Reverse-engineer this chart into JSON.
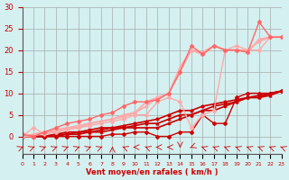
{
  "bg_color": "#d4f0f0",
  "grid_color": "#aaaaaa",
  "xlabel": "Vent moyen/en rafales ( km/h )",
  "xlabel_color": "#cc0000",
  "tick_color": "#cc0000",
  "xlim": [
    0,
    23
  ],
  "ylim": [
    0,
    30
  ],
  "yticks": [
    0,
    5,
    10,
    15,
    20,
    25,
    30
  ],
  "xticks": [
    0,
    1,
    2,
    3,
    4,
    5,
    6,
    7,
    8,
    9,
    10,
    11,
    12,
    13,
    14,
    15,
    16,
    17,
    18,
    19,
    20,
    21,
    22,
    23
  ],
  "series": [
    {
      "x": [
        0,
        1,
        2,
        3,
        4,
        5,
        6,
        7,
        8,
        9,
        10,
        11,
        12,
        13,
        14,
        15,
        16,
        17,
        18,
        19,
        20,
        21,
        22,
        23
      ],
      "y": [
        0,
        0,
        0,
        0,
        0,
        0,
        0,
        0,
        0.5,
        0.5,
        1,
        1,
        0,
        0,
        1,
        1,
        5,
        3,
        3,
        9,
        10,
        10,
        10,
        10.5
      ],
      "color": "#cc0000",
      "lw": 1.0,
      "marker": "D",
      "ms": 2
    },
    {
      "x": [
        0,
        1,
        2,
        3,
        4,
        5,
        6,
        7,
        8,
        9,
        10,
        11,
        12,
        13,
        14,
        15,
        16,
        17,
        18,
        19,
        20,
        21,
        22,
        23
      ],
      "y": [
        0,
        0,
        0,
        0,
        0.5,
        0.5,
        1,
        1,
        1.5,
        2,
        2,
        2,
        2,
        3,
        4,
        5,
        6,
        6,
        7,
        8,
        9,
        9,
        10,
        10.5
      ],
      "color": "#cc0000",
      "lw": 1.2,
      "marker": "s",
      "ms": 2
    },
    {
      "x": [
        0,
        1,
        2,
        3,
        4,
        5,
        6,
        7,
        8,
        9,
        10,
        11,
        12,
        13,
        14,
        15,
        16,
        17,
        18,
        19,
        20,
        21,
        22,
        23
      ],
      "y": [
        0,
        0,
        0,
        0.5,
        0.5,
        1,
        1,
        1.5,
        2,
        2,
        2.5,
        3,
        3,
        4,
        5,
        5,
        6,
        7,
        7.5,
        8,
        9,
        9,
        9.5,
        10.5
      ],
      "color": "#cc0000",
      "lw": 1.2,
      "marker": "^",
      "ms": 2
    },
    {
      "x": [
        0,
        1,
        2,
        3,
        4,
        5,
        6,
        7,
        8,
        9,
        10,
        11,
        12,
        13,
        14,
        15,
        16,
        17,
        18,
        19,
        20,
        21,
        22,
        23
      ],
      "y": [
        0,
        0,
        0,
        0.5,
        1,
        1,
        1.5,
        2,
        2,
        2.5,
        3,
        3.5,
        4,
        5,
        6,
        6,
        7,
        7.5,
        8,
        8.5,
        9,
        9.5,
        10,
        10.5
      ],
      "color": "#cc0000",
      "lw": 1.2,
      "marker": "o",
      "ms": 2
    },
    {
      "x": [
        0,
        1,
        2,
        3,
        4,
        5,
        6,
        7,
        8,
        9,
        10,
        11,
        12,
        13,
        14,
        15,
        16,
        17,
        18,
        19,
        20,
        21,
        22,
        23
      ],
      "y": [
        0,
        2,
        0.5,
        1,
        1.5,
        2,
        2.5,
        3,
        3.5,
        4,
        5,
        5,
        8,
        9,
        8,
        2,
        5,
        6,
        20,
        21,
        20,
        20,
        23,
        23
      ],
      "color": "#ffaaaa",
      "lw": 1.0,
      "marker": "D",
      "ms": 2
    },
    {
      "x": [
        0,
        1,
        2,
        3,
        4,
        5,
        6,
        7,
        8,
        9,
        10,
        11,
        12,
        13,
        14,
        15,
        16,
        17,
        18,
        19,
        20,
        21,
        22,
        23
      ],
      "y": [
        0,
        0.5,
        1,
        1.5,
        2,
        2.5,
        3,
        3.5,
        4,
        5,
        5.5,
        7,
        9,
        10,
        16,
        20,
        19.5,
        21,
        20,
        20,
        20,
        22,
        23,
        23
      ],
      "color": "#ffaaaa",
      "lw": 1.3,
      "marker": "^",
      "ms": 2
    },
    {
      "x": [
        0,
        1,
        2,
        3,
        4,
        5,
        6,
        7,
        8,
        9,
        10,
        11,
        12,
        13,
        14,
        15,
        16,
        17,
        18,
        19,
        20,
        21,
        22,
        23
      ],
      "y": [
        0,
        0,
        1,
        1,
        2,
        2,
        3,
        3.5,
        4,
        4.5,
        5.5,
        8,
        9,
        10,
        15,
        20,
        19,
        21,
        20,
        20,
        19.5,
        22.5,
        23,
        23
      ],
      "color": "#ffaaaa",
      "lw": 1.3,
      "marker": "o",
      "ms": 2
    },
    {
      "x": [
        0,
        1,
        2,
        3,
        4,
        5,
        6,
        7,
        8,
        9,
        10,
        11,
        12,
        13,
        14,
        15,
        16,
        17,
        18,
        19,
        20,
        21,
        22,
        23
      ],
      "y": [
        0.5,
        0,
        1,
        2,
        3,
        3.5,
        4,
        5,
        5.5,
        7,
        8,
        8,
        8.5,
        10,
        15,
        21,
        19,
        21,
        20,
        20,
        19.5,
        26.5,
        23,
        23
      ],
      "color": "#ff6666",
      "lw": 1.0,
      "marker": "D",
      "ms": 2
    }
  ],
  "arrow_annotations": true
}
